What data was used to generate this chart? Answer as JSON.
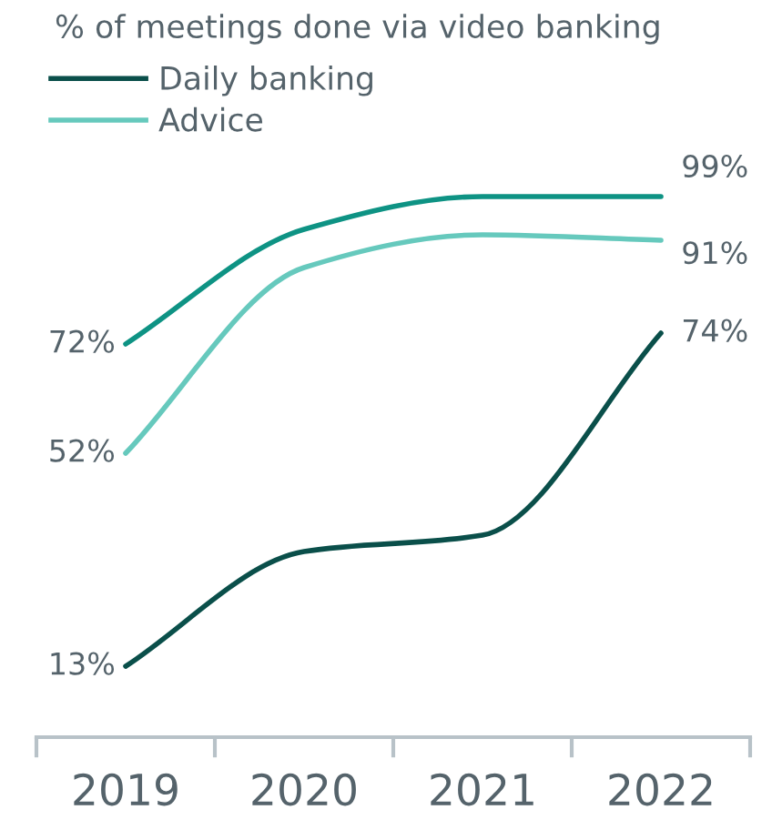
{
  "chart_data": {
    "type": "line",
    "title": "% of meetings done via video banking",
    "categories": [
      "2019",
      "2020",
      "2021",
      "2022"
    ],
    "series": [
      {
        "color": "#0e9384",
        "values": [
          72,
          93,
          99,
          99
        ],
        "value_labels": [
          "72%",
          null,
          null,
          "99%"
        ]
      },
      {
        "name": "Advice",
        "color": "#66c9bd",
        "values": [
          52,
          86,
          92,
          91
        ],
        "value_labels": [
          "52%",
          null,
          null,
          "91%"
        ]
      },
      {
        "name": "Daily banking",
        "color": "#0a4f4a",
        "values": [
          13,
          34,
          37,
          74
        ],
        "value_labels": [
          "13%",
          null,
          null,
          "74%"
        ]
      }
    ],
    "legend": "top left",
    "grid": false,
    "tick_labels": "x",
    "marker": "none",
    "line_style": "solid"
  }
}
